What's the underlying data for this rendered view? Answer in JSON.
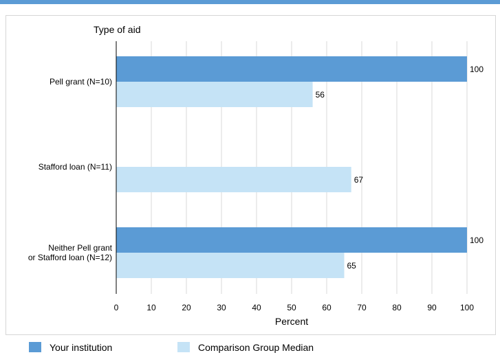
{
  "chart_data": {
    "type": "bar",
    "orientation": "horizontal",
    "title": "Type of aid",
    "xlabel": "Percent",
    "xlim": [
      0,
      100
    ],
    "xticks": [
      0,
      10,
      20,
      30,
      40,
      50,
      60,
      70,
      80,
      90,
      100
    ],
    "grid": true,
    "legend_position": "bottom",
    "categories": [
      [
        "Pell grant  (N=10)"
      ],
      [
        "Stafford loan (N=11)"
      ],
      [
        "Neither Pell grant",
        "or Stafford loan (N=12)"
      ]
    ],
    "series": [
      {
        "name": "Your institution",
        "color": "#5b9bd5",
        "values": [
          100,
          null,
          100
        ]
      },
      {
        "name": "Comparison Group Median",
        "color": "#c5e3f6",
        "values": [
          56,
          67,
          65
        ]
      }
    ]
  },
  "legend": {
    "items": [
      {
        "label": "Your institution",
        "color": "#5b9bd5"
      },
      {
        "label": "Comparison Group Median",
        "color": "#c5e3f6"
      }
    ]
  }
}
